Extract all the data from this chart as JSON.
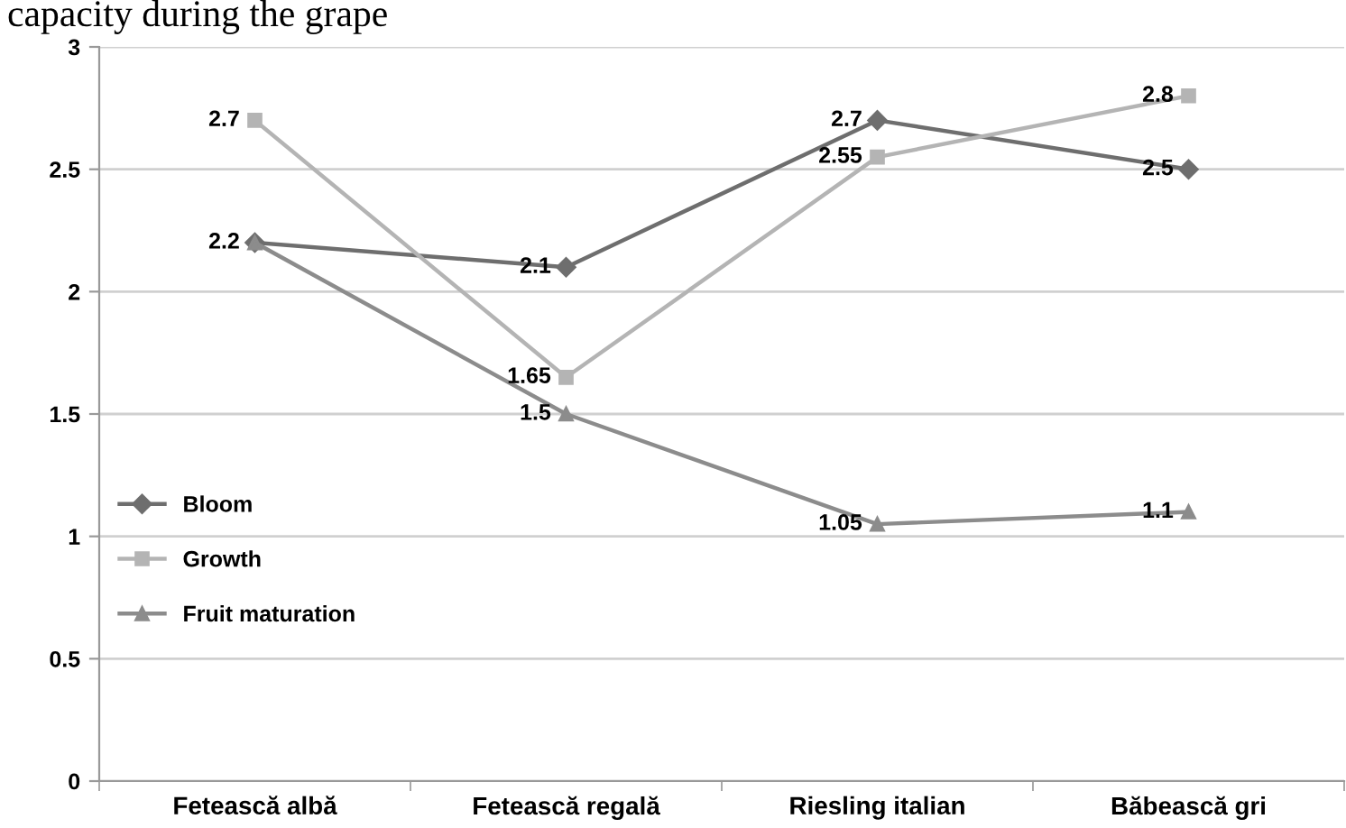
{
  "chart_data": {
    "type": "line",
    "title": "capacity during the grape",
    "categories": [
      "Fetească albă",
      "Fetească regală",
      "Riesling italian",
      "Băbească gri"
    ],
    "series": [
      {
        "name": "Bloom",
        "color": "#6e6e6e",
        "marker": "diamond",
        "values": [
          2.2,
          2.1,
          2.7,
          2.5
        ],
        "value_labels": [
          "2.2",
          "2.1",
          "2.7",
          "2.5"
        ]
      },
      {
        "name": "Growth",
        "color": "#b4b4b4",
        "marker": "square",
        "values": [
          2.7,
          1.65,
          2.55,
          2.8
        ],
        "value_labels": [
          "2.7",
          "1.65",
          "2.55",
          "2.8"
        ]
      },
      {
        "name": "Fruit maturation",
        "color": "#8c8c8c",
        "marker": "triangle",
        "values": [
          2.2,
          1.5,
          1.05,
          1.1
        ],
        "value_labels": [
          null,
          "1.5",
          "1.05",
          "1.1"
        ]
      }
    ],
    "ylim": [
      0,
      3
    ],
    "yticks": [
      0,
      0.5,
      1,
      1.5,
      2,
      2.5,
      3
    ],
    "grid": "y",
    "legend": "left"
  }
}
